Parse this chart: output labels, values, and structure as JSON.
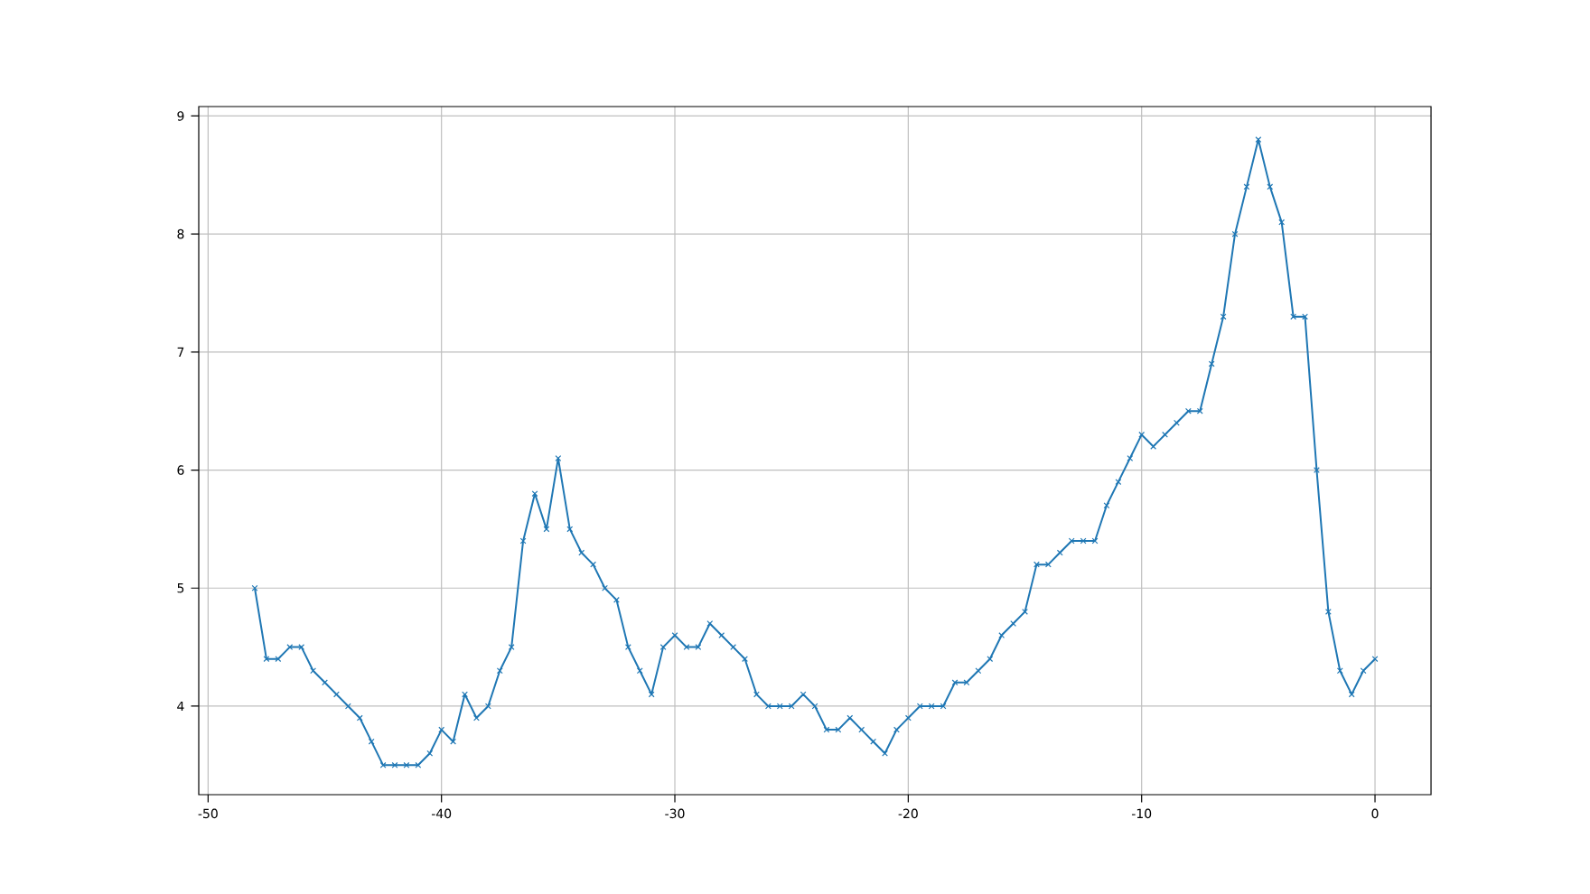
{
  "chart_data": {
    "type": "line",
    "x": [
      -48,
      -47.5,
      -47,
      -46.5,
      -46,
      -45.5,
      -45,
      -44.5,
      -44,
      -43.5,
      -43,
      -42.5,
      -42,
      -41.5,
      -41,
      -40.5,
      -40,
      -39.5,
      -39,
      -38.5,
      -38,
      -37.5,
      -37,
      -36.5,
      -36,
      -35.5,
      -35,
      -34.5,
      -34,
      -33.5,
      -33,
      -32.5,
      -32,
      -31.5,
      -31,
      -30.5,
      -30,
      -29.5,
      -29,
      -28.5,
      -28,
      -27.5,
      -27,
      -26.5,
      -26,
      -25.5,
      -25,
      -24.5,
      -24,
      -23.5,
      -23,
      -22.5,
      -22,
      -21.5,
      -21,
      -20.5,
      -20,
      -19.5,
      -19,
      -18.5,
      -18,
      -17.5,
      -17,
      -16.5,
      -16,
      -15.5,
      -15,
      -14.5,
      -14,
      -13.5,
      -13,
      -12.5,
      -12,
      -11.5,
      -11,
      -10.5,
      -10,
      -9.5,
      -9,
      -8.5,
      -8,
      -7.5,
      -7,
      -6.5,
      -6,
      -5.5,
      -5,
      -4.5,
      -4,
      -3.5,
      -3,
      -2.5,
      -2,
      -1.5,
      -1,
      -0.5,
      0
    ],
    "series": [
      {
        "color": "#1f77b4",
        "values": [
          5.0,
          4.4,
          4.4,
          4.5,
          4.5,
          4.3,
          4.2,
          4.1,
          4.0,
          3.9,
          3.7,
          3.5,
          3.5,
          3.5,
          3.5,
          3.6,
          3.8,
          3.7,
          4.1,
          3.9,
          4.0,
          4.3,
          4.5,
          5.4,
          5.8,
          5.5,
          6.1,
          5.5,
          5.3,
          5.2,
          5.0,
          4.9,
          4.5,
          4.3,
          4.1,
          4.5,
          4.6,
          4.5,
          4.5,
          4.7,
          4.6,
          4.5,
          4.4,
          4.1,
          4.0,
          4.0,
          4.0,
          4.1,
          4.0,
          3.8,
          3.8,
          3.9,
          3.8,
          3.7,
          3.6,
          3.8,
          3.9,
          4.0,
          4.0,
          4.0,
          4.2,
          4.2,
          4.3,
          4.4,
          4.6,
          4.7,
          4.8,
          5.2,
          5.2,
          5.3,
          5.4,
          5.4,
          5.4,
          5.7,
          5.9,
          6.1,
          6.3,
          6.2,
          6.3,
          6.4,
          6.5,
          6.5,
          6.9,
          7.3,
          8.0,
          8.4,
          8.8,
          8.4,
          8.1,
          7.3,
          7.3,
          6.0,
          4.8,
          4.3,
          4.1,
          4.3,
          4.4
        ]
      }
    ],
    "xlim": [
      -50.4,
      2.4
    ],
    "ylim": [
      3.25,
      9.08
    ],
    "xticks": [
      -50,
      -40,
      -30,
      -20,
      -10,
      0
    ],
    "yticks": [
      4,
      5,
      6,
      7,
      8,
      9
    ],
    "grid": true,
    "marker": "cross",
    "line_style": "solid"
  }
}
